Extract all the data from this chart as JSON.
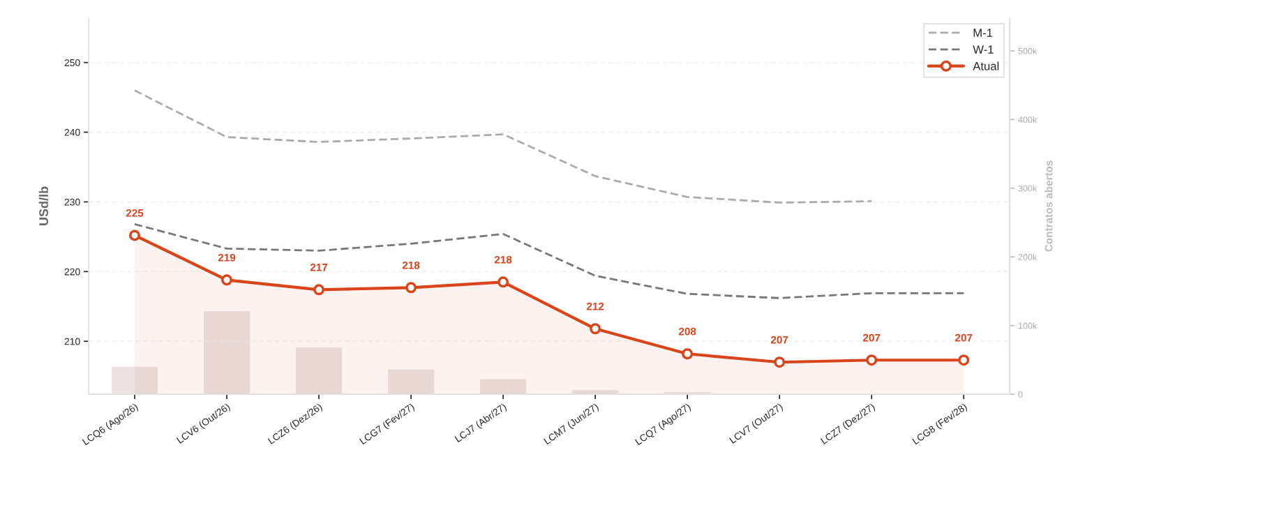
{
  "chart_data": {
    "type": "line",
    "categories": [
      "LCQ6 (Ago/26)",
      "LCV6 (Out/26)",
      "LCZ6 (Dez/26)",
      "LCG7 (Fev/27)",
      "LCJ7 (Abr/27)",
      "LCM7 (Jun/27)",
      "LCQ7 (Ago/27)",
      "LCV7 (Out/27)",
      "LCZ7 (Dez/27)",
      "LCG8 (Fev/28)"
    ],
    "series": [
      {
        "type": "bar",
        "axis": "y2",
        "color": "#ebe2e1",
        "values": [
          40000,
          121000,
          68000,
          36000,
          22000,
          6000,
          3000,
          null,
          null,
          null
        ]
      },
      {
        "name": "M-1",
        "color": "#aaaaaa",
        "line_style": "dashed",
        "values": [
          246.0,
          239.3,
          238.6,
          239.1,
          239.7,
          233.7,
          230.7,
          229.9,
          230.1,
          null
        ]
      },
      {
        "name": "W-1",
        "color": "#777777",
        "line_style": "dashed",
        "values": [
          226.8,
          223.3,
          223.0,
          224.0,
          225.4,
          219.4,
          216.8,
          216.2,
          216.9,
          216.9
        ]
      },
      {
        "type": "area",
        "name": "Atual",
        "color": "#d9441a",
        "marker": "circle",
        "values": [
          225.2,
          218.8,
          217.4,
          217.7,
          218.5,
          211.8,
          208.2,
          207.0,
          207.3,
          207.3
        ],
        "value_labels": [
          "225",
          "219",
          "217",
          "218",
          "218",
          "212",
          "208",
          "207",
          "207",
          "207"
        ]
      }
    ],
    "ylabel": "USd/lb",
    "y2label": "Contratos abertos",
    "ylim": [
      202.4,
      256.4
    ],
    "yticks": [
      210,
      220,
      230,
      240,
      250
    ],
    "y2lim": [
      0,
      548000
    ],
    "y2ticks": [
      0,
      {
        "value": 100000,
        "label": "100k"
      },
      {
        "value": 200000,
        "label": "200k"
      },
      {
        "value": 300000,
        "label": "300k"
      },
      {
        "value": 400000,
        "label": "400k"
      },
      {
        "value": 500000,
        "label": "500k"
      }
    ],
    "grid": "y",
    "legend": "top right"
  }
}
